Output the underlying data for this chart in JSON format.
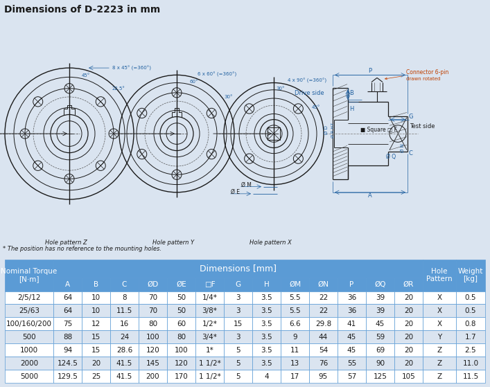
{
  "title": "Dimensions of D-2223 in mm",
  "title_bg": "#dae4f0",
  "title_color": "#1a1a1a",
  "body_bg": "#dae4f0",
  "drawing_bg": "#ffffff",
  "line_color": "#1a1a1a",
  "dim_color": "#2060a0",
  "connector_color": "#c04000",
  "table_header_bg": "#5b9bd5",
  "table_text_color": "#1a1a1a",
  "table_header_text_color": "#ffffff",
  "table_alt1": "#ffffff",
  "table_alt2": "#dae4f0",
  "table_border": "#5b9bd5",
  "col_headers": [
    "A",
    "B",
    "C",
    "ØD",
    "ØE",
    "□F",
    "G",
    "H",
    "ØM",
    "ØN",
    "P",
    "ØQ",
    "ØR"
  ],
  "rows": [
    [
      "2/5/12",
      64,
      10,
      8,
      70,
      50,
      "1/4*",
      3,
      3.5,
      5.5,
      22,
      36,
      39,
      20,
      "X",
      0.5
    ],
    [
      "25/63",
      64,
      10,
      11.5,
      70,
      50,
      "3/8*",
      3,
      3.5,
      5.5,
      22,
      36,
      39,
      20,
      "X",
      0.5
    ],
    [
      "100/160/200",
      75,
      12,
      16,
      80,
      60,
      "1/2*",
      15,
      3.5,
      6.6,
      29.8,
      41,
      45,
      20,
      "X",
      0.8
    ],
    [
      "500",
      88,
      15,
      24,
      100,
      80,
      "3/4*",
      3,
      3.5,
      9,
      44,
      45,
      59,
      20,
      "Y",
      1.7
    ],
    [
      "1000",
      94,
      15,
      28.6,
      120,
      100,
      "1*",
      5,
      3.5,
      11,
      54,
      45,
      69,
      20,
      "Z",
      2.5
    ],
    [
      "2000",
      124.5,
      20,
      41.5,
      145,
      120,
      "1 1/2*",
      5,
      3.5,
      13,
      76,
      55,
      90,
      20,
      "Z",
      11.0
    ],
    [
      "5000",
      129.5,
      25,
      41.5,
      200,
      170,
      "1 1/2*",
      5,
      4,
      17,
      95,
      57,
      125,
      105,
      "Z",
      11.5
    ]
  ],
  "footnote": "* The position has no reference to the mounting holes."
}
